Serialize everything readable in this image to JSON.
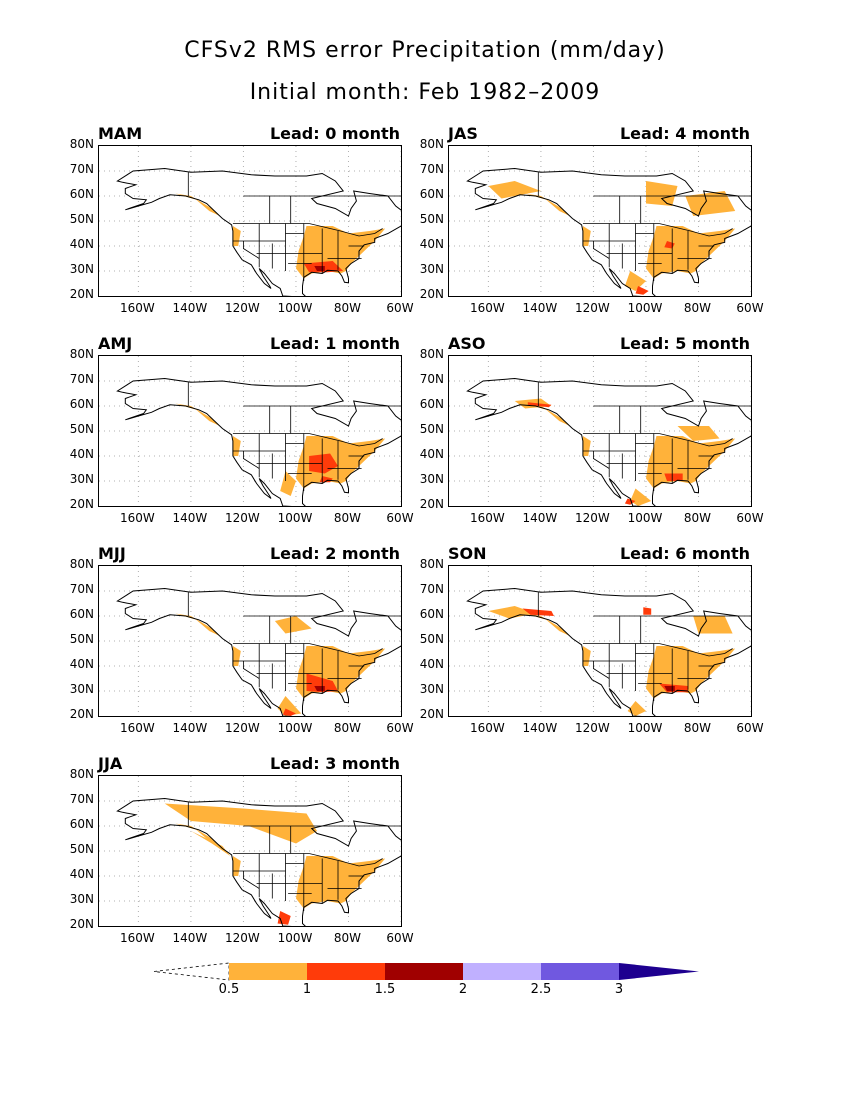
{
  "title": "CFSv2 RMS error Precipitation (mm/day)",
  "subtitle": "Initial month: Feb 1982–2009",
  "lat_labels": [
    "80N",
    "70N",
    "60N",
    "50N",
    "40N",
    "30N",
    "20N"
  ],
  "lon_labels": [
    "160W",
    "140W",
    "120W",
    "100W",
    "80W",
    "60W"
  ],
  "panels": [
    {
      "season": "MAM",
      "lead": "Lead: 0 month"
    },
    {
      "season": "JAS",
      "lead": "Lead: 4 month"
    },
    {
      "season": "AMJ",
      "lead": "Lead: 1 month"
    },
    {
      "season": "ASO",
      "lead": "Lead: 5 month"
    },
    {
      "season": "MJJ",
      "lead": "Lead: 2 month"
    },
    {
      "season": "SON",
      "lead": "Lead: 6 month"
    },
    {
      "season": "JJA",
      "lead": "Lead: 3 month"
    }
  ],
  "legend": {
    "ticks": [
      "0.5",
      "1",
      "1.5",
      "2",
      "2.5",
      "3"
    ],
    "colors": [
      "#ffffff",
      "#ffb23a",
      "#ff3b0a",
      "#a00000",
      "#c0b0ff",
      "#7058e0",
      "#1e0090"
    ]
  }
}
